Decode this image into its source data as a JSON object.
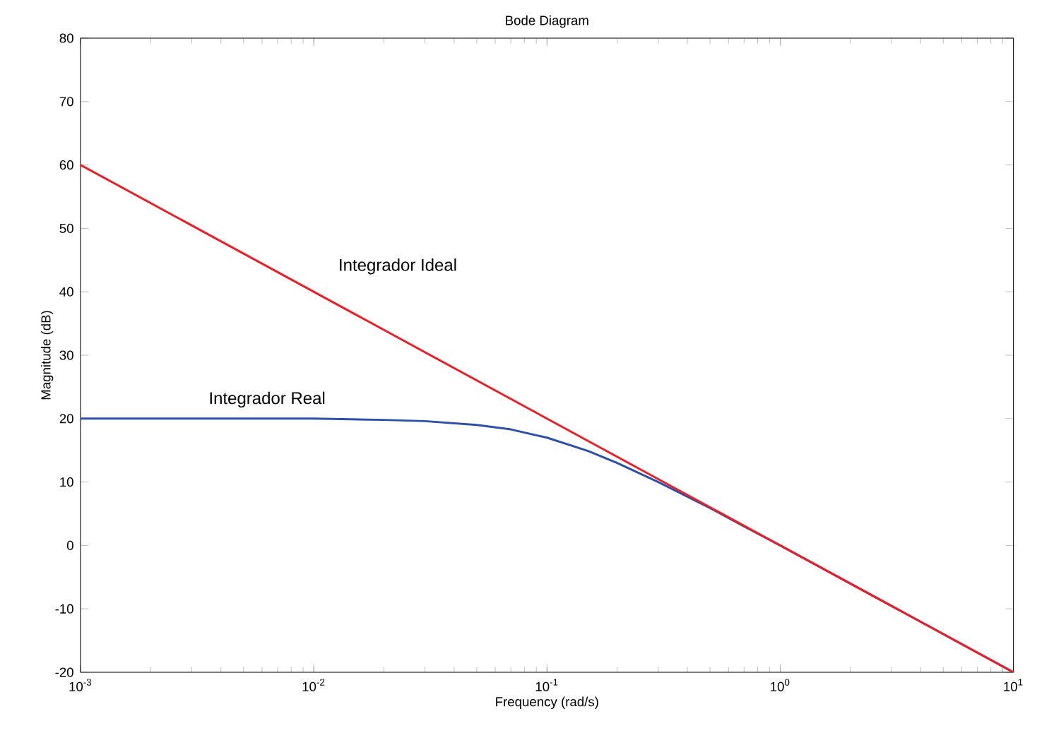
{
  "chart_data": {
    "type": "line",
    "title": "Bode Diagram",
    "xlabel": "Frequency  (rad/s)",
    "ylabel": "Magnitude (dB)",
    "log": "x",
    "xlim": [
      0.001,
      10
    ],
    "ylim": [
      -20,
      80
    ],
    "xticks": [
      {
        "value": 0.001,
        "label": "10$^{-3}$"
      },
      {
        "value": 0.01,
        "label": "10$^{-2}$"
      },
      {
        "value": 0.1,
        "label": "10$^{-1}$"
      },
      {
        "value": 1,
        "label": "10$^{0}$"
      },
      {
        "value": 10,
        "label": "10$^{1}$"
      }
    ],
    "yticks": [
      -20,
      -10,
      0,
      10,
      20,
      30,
      40,
      50,
      60,
      70,
      80
    ],
    "marker": "none",
    "line_style": "solid",
    "series": [
      {
        "color": "#2e4fa8",
        "x": [
          0.001,
          0.003,
          0.01,
          0.02,
          0.03,
          0.05,
          0.07,
          0.1,
          0.15,
          0.2,
          0.3,
          0.5,
          0.7,
          1,
          10
        ],
        "values": [
          20,
          20,
          20,
          19.8,
          19.6,
          19,
          18.3,
          17,
          14.9,
          13,
          10,
          5.9,
          3,
          0,
          -20
        ]
      },
      {
        "color": "#ee1c24",
        "x": [
          0.001,
          10
        ],
        "values": [
          60,
          -20
        ]
      }
    ],
    "annotations": [
      "Integrador Ideal",
      "Integrador Real"
    ]
  }
}
